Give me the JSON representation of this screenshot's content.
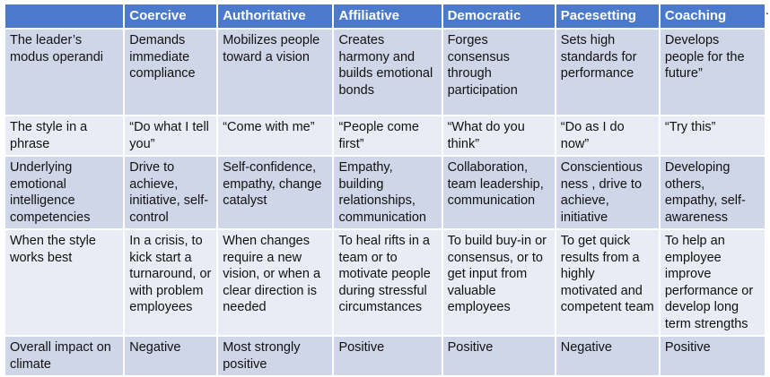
{
  "table": {
    "headers": [
      "",
      "Coercive",
      "Authoritative",
      "Affiliative",
      "Democratic",
      "Pacesetting",
      "Coaching"
    ],
    "rows": [
      {
        "label": "The leader’s modus operandi",
        "cells": [
          "Demands immediate compliance",
          "Mobilizes people toward a vision",
          "Creates harmony and builds emotional bonds",
          "Forges consensus through participation",
          "Sets high standards for performance",
          "Develops people for the future”"
        ]
      },
      {
        "label": "The style in a phrase",
        "cells": [
          "“Do what I tell you”",
          "“Come with me”",
          "“People come first”",
          "“What do you think”",
          "“Do as I do now”",
          "“Try this”"
        ]
      },
      {
        "label": "Underlying emotional intelligence competencies",
        "cells": [
          "Drive to achieve, initiative, self-control",
          "Self-confidence, empathy, change catalyst",
          "Empathy, building relationships, communication",
          "Collaboration, team leadership, communication",
          "Conscientious ness , drive to achieve, initiative",
          "Developing others, empathy, self-awareness"
        ]
      },
      {
        "label": "When the style works best",
        "cells": [
          "In a crisis, to kick start a turnaround, or with problem employees",
          "When changes require a new vision, or when a clear direction is needed",
          "To heal rifts in a team or to motivate people during stressful circumstances",
          "To build buy-in or consensus, or to get input from valuable employees",
          "To get quick results from a highly motivated and competent team",
          "To help an employee improve performance or develop long term strengths"
        ]
      },
      {
        "label": "Overall impact on climate",
        "cells": [
          "Negative",
          "Most strongly positive",
          "Positive",
          "Positive",
          "Negative",
          "Positive"
        ]
      }
    ]
  },
  "trailing_mark": "."
}
